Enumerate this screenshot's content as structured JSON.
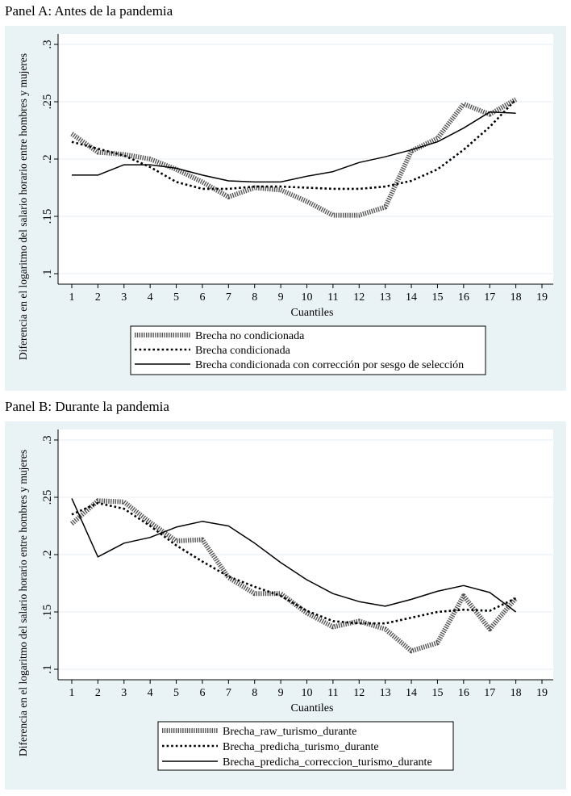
{
  "panels": {
    "a": {
      "title": "Panel A: Antes de la pandemia"
    },
    "b": {
      "title": "Panel B: Durante la pandemia"
    }
  },
  "chart_data": [
    {
      "type": "line",
      "title": "Panel A: Antes de la pandemia",
      "xlabel": "Cuantiles",
      "ylabel": "Diferencia en el logaritmo del salario horario entre hombres y mujeres",
      "xlim": [
        1,
        19
      ],
      "ylim": [
        0.1,
        0.3
      ],
      "xticks": [
        1,
        2,
        3,
        4,
        5,
        6,
        7,
        8,
        9,
        10,
        11,
        12,
        13,
        14,
        15,
        16,
        17,
        18,
        19
      ],
      "yticks": [
        0.1,
        0.15,
        0.2,
        0.25,
        0.3
      ],
      "ytick_labels": [
        ".1",
        ".15",
        ".2",
        ".25",
        ".3"
      ],
      "grid": true,
      "legend": "bottom",
      "x": [
        1,
        2,
        3,
        4,
        5,
        6,
        7,
        8,
        9,
        10,
        11,
        12,
        13,
        14,
        15,
        16,
        17,
        18
      ],
      "series": [
        {
          "name": "Brecha no condicionada",
          "style": "thick-dotted",
          "values": [
            0.222,
            0.206,
            0.204,
            0.2,
            0.191,
            0.18,
            0.167,
            0.175,
            0.173,
            0.163,
            0.151,
            0.151,
            0.158,
            0.207,
            0.218,
            0.248,
            0.239,
            0.252
          ]
        },
        {
          "name": "Brecha condicionada",
          "style": "dotted",
          "values": [
            0.215,
            0.209,
            0.203,
            0.193,
            0.18,
            0.174,
            0.174,
            0.176,
            0.176,
            0.175,
            0.174,
            0.174,
            0.176,
            0.181,
            0.191,
            0.208,
            0.228,
            0.252
          ]
        },
        {
          "name": "Brecha condicionada con corrección por sesgo de selección",
          "style": "solid",
          "values": [
            0.186,
            0.186,
            0.195,
            0.195,
            0.192,
            0.186,
            0.181,
            0.18,
            0.18,
            0.185,
            0.189,
            0.197,
            0.202,
            0.208,
            0.215,
            0.227,
            0.241,
            0.24
          ]
        }
      ]
    },
    {
      "type": "line",
      "title": "Panel B: Durante la pandemia",
      "xlabel": "Cuantiles",
      "ylabel": "Diferencia en el logaritmo del salario horario entre hombres y mujeres",
      "xlim": [
        1,
        19
      ],
      "ylim": [
        0.1,
        0.3
      ],
      "xticks": [
        1,
        2,
        3,
        4,
        5,
        6,
        7,
        8,
        9,
        10,
        11,
        12,
        13,
        14,
        15,
        16,
        17,
        18,
        19
      ],
      "yticks": [
        0.1,
        0.15,
        0.2,
        0.25,
        0.3
      ],
      "ytick_labels": [
        ".1",
        ".15",
        ".2",
        ".25",
        ".3"
      ],
      "grid": true,
      "legend": "bottom",
      "x": [
        1,
        2,
        3,
        4,
        5,
        6,
        7,
        8,
        9,
        10,
        11,
        12,
        13,
        14,
        15,
        16,
        17,
        18
      ],
      "series": [
        {
          "name": "Brecha_raw_turismo_durante",
          "style": "thick-dotted",
          "values": [
            0.227,
            0.247,
            0.246,
            0.228,
            0.212,
            0.213,
            0.18,
            0.166,
            0.166,
            0.149,
            0.137,
            0.142,
            0.135,
            0.116,
            0.123,
            0.164,
            0.135,
            0.162
          ]
        },
        {
          "name": "Brecha_predicha_turismo_durante",
          "style": "dotted",
          "values": [
            0.235,
            0.245,
            0.24,
            0.225,
            0.208,
            0.194,
            0.181,
            0.172,
            0.164,
            0.151,
            0.142,
            0.14,
            0.14,
            0.145,
            0.15,
            0.152,
            0.151,
            0.162
          ]
        },
        {
          "name": "Brecha_predicha_correccion_turismo_durante",
          "style": "solid",
          "values": [
            0.249,
            0.198,
            0.21,
            0.215,
            0.224,
            0.229,
            0.225,
            0.21,
            0.193,
            0.178,
            0.166,
            0.159,
            0.155,
            0.161,
            0.168,
            0.173,
            0.167,
            0.15
          ]
        }
      ]
    }
  ]
}
